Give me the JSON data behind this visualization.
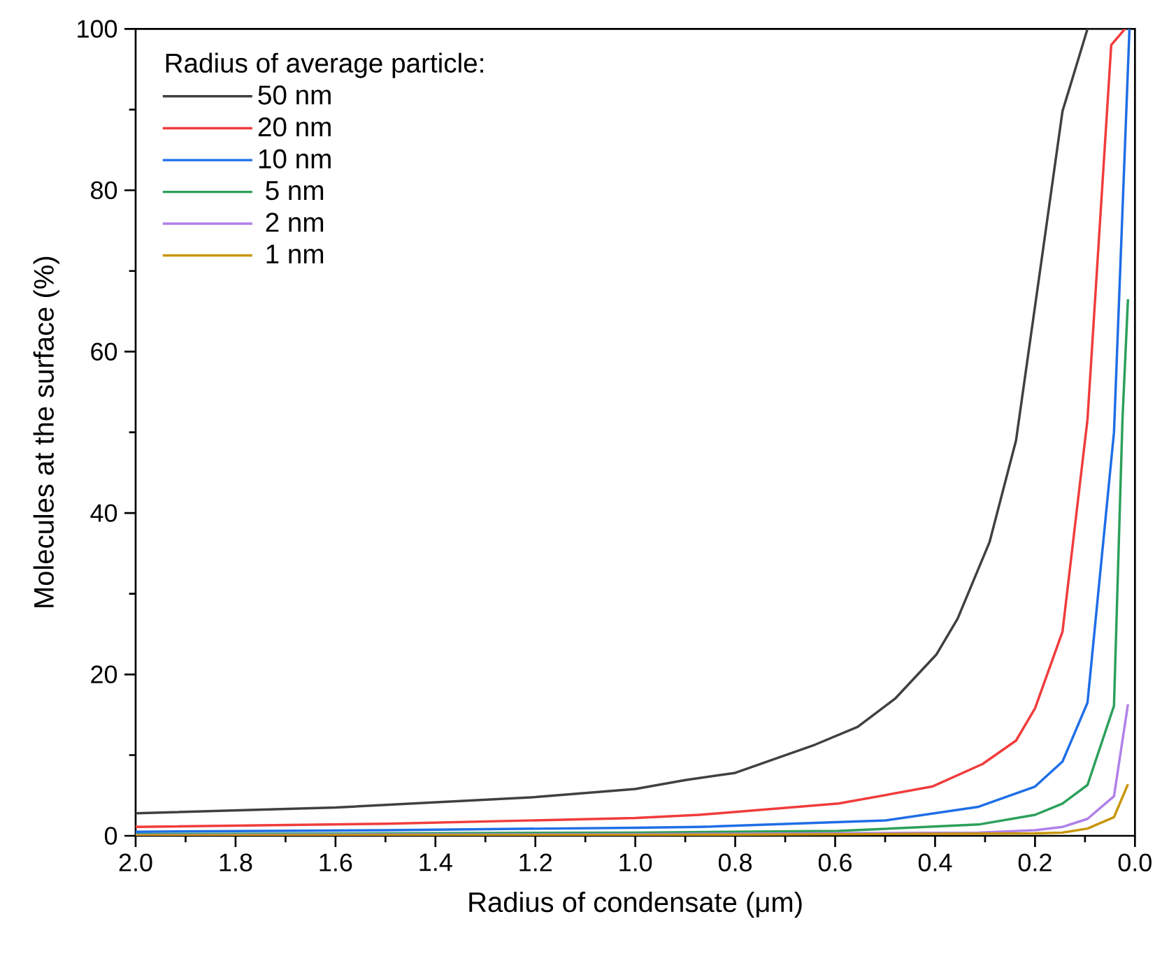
{
  "chart_data": {
    "type": "line",
    "xlabel": "Radius of condensate (μm)",
    "ylabel": "Molecules at the surface (%)",
    "legend_title": "Radius of average particle:",
    "legend": "top left",
    "grid": false,
    "marker": "none",
    "line_style": "solid",
    "xlim": [
      2.0,
      0.0
    ],
    "xticks": [
      {
        "value": 2.0,
        "label": "2.0"
      },
      {
        "value": 1.8,
        "label": "1.8"
      },
      {
        "value": 1.6,
        "label": "1.6"
      },
      {
        "value": 1.4,
        "label": "1.4"
      },
      {
        "value": 1.2,
        "label": "1.2"
      },
      {
        "value": 1.0,
        "label": "1.0"
      },
      {
        "value": 0.8,
        "label": "0.8"
      },
      {
        "value": 0.6,
        "label": "0.6"
      },
      {
        "value": 0.4,
        "label": "0.4"
      },
      {
        "value": 0.2,
        "label": "0.2"
      },
      {
        "value": 0.0,
        "label": "0.0"
      }
    ],
    "ylim": [
      0,
      100
    ],
    "yticks": [
      0,
      20,
      40,
      60,
      80,
      100
    ],
    "series": [
      {
        "name": "50 nm",
        "color": "#404040",
        "x": [
          2.0,
          1.6,
          1.2,
          1.0,
          0.9,
          0.8,
          0.64,
          0.555,
          0.48,
          0.397,
          0.355,
          0.291,
          0.238,
          0.19,
          0.145,
          0.095,
          0.01
        ],
        "values": [
          2.8,
          3.5,
          4.8,
          5.8,
          6.9,
          7.8,
          11.3,
          13.5,
          17,
          22.5,
          26.9,
          36.4,
          49,
          70,
          89.8,
          100,
          100
        ]
      },
      {
        "name": "20 nm",
        "color": "#f03c3c",
        "x": [
          2.0,
          1.5,
          1.0,
          0.873,
          0.593,
          0.406,
          0.305,
          0.238,
          0.2,
          0.145,
          0.095,
          0.0475,
          0.02
        ],
        "values": [
          1.1,
          1.5,
          2.2,
          2.6,
          4.0,
          6.1,
          8.9,
          11.8,
          15.8,
          25.3,
          51.6,
          98,
          100
        ]
      },
      {
        "name": "10 nm",
        "color": "#1e6ee6",
        "x": [
          2.0,
          1.5,
          1.0,
          0.873,
          0.5,
          0.313,
          0.2,
          0.145,
          0.095,
          0.042,
          0.011
        ],
        "values": [
          0.5,
          0.7,
          1.0,
          1.1,
          1.9,
          3.6,
          6.1,
          9.2,
          16.5,
          50,
          100
        ]
      },
      {
        "name": "  5 nm",
        "color": "#2ca05a",
        "x": [
          2.0,
          1.0,
          0.593,
          0.313,
          0.2,
          0.145,
          0.095,
          0.042,
          0.025,
          0.014
        ],
        "values": [
          0.2,
          0.4,
          0.6,
          1.4,
          2.6,
          4.0,
          6.3,
          16.1,
          51.6,
          66.5
        ]
      },
      {
        "name": "  2 nm",
        "color": "#b080e8",
        "x": [
          2.0,
          1.0,
          0.313,
          0.2,
          0.145,
          0.095,
          0.042,
          0.014
        ],
        "values": [
          0.1,
          0.2,
          0.4,
          0.7,
          1.1,
          2.1,
          4.9,
          16.3
        ]
      },
      {
        "name": "  1 nm",
        "color": "#c8960a",
        "x": [
          2.0,
          1.0,
          0.2,
          0.145,
          0.095,
          0.042,
          0.014
        ],
        "values": [
          0.05,
          0.1,
          0.3,
          0.4,
          0.9,
          2.3,
          6.4
        ]
      }
    ]
  }
}
